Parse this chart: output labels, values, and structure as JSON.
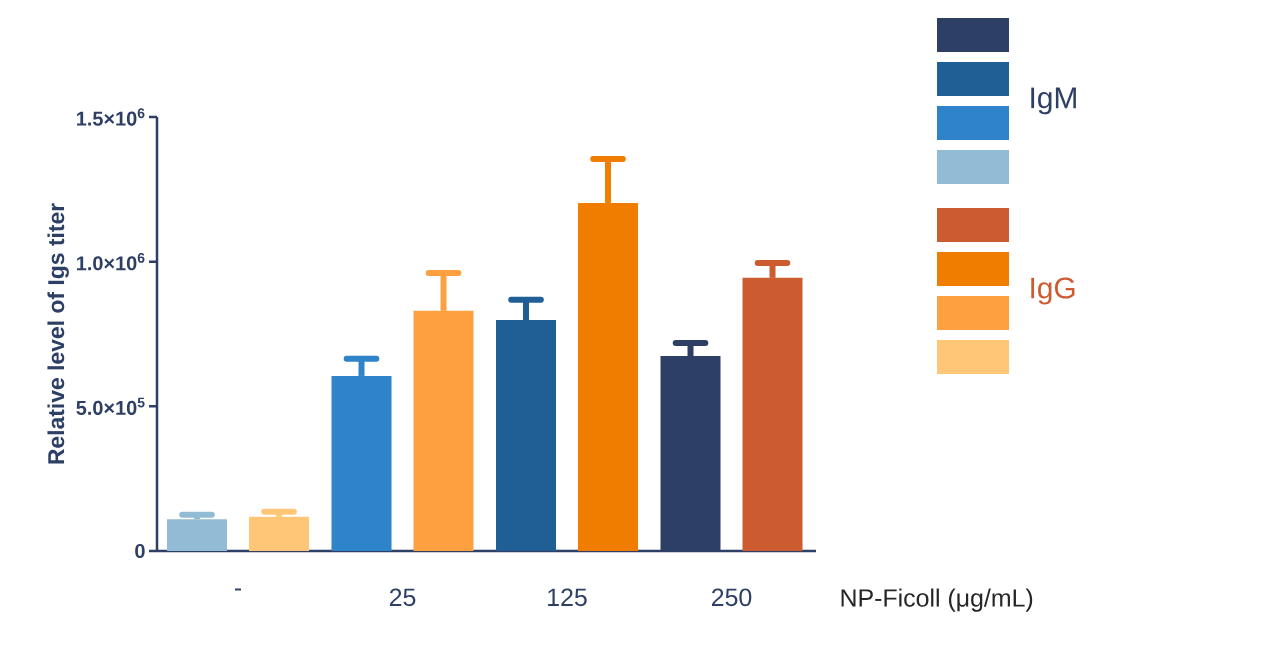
{
  "chart_data": {
    "type": "bar",
    "ylabel": "Relative level of Igs titer",
    "xlabel": "NP-Ficoll (μg/mL)",
    "categories": [
      "-",
      "25",
      "125",
      "250"
    ],
    "series": [
      {
        "name": "IgM",
        "colors": [
          "#92bcd5",
          "#2e83c9",
          "#1f5f95",
          "#2e3f66"
        ],
        "values": [
          110000,
          605000,
          798000,
          674000
        ],
        "errors": [
          [
            110000,
            125000
          ],
          [
            605000,
            664000
          ],
          [
            798000,
            868000
          ],
          [
            674000,
            719000
          ]
        ]
      },
      {
        "name": "IgG",
        "colors": [
          "#ffc677",
          "#ffa040",
          "#f07d00",
          "#cc5b30"
        ],
        "values": [
          118000,
          830000,
          1203000,
          944000
        ],
        "errors": [
          [
            118000,
            136000
          ],
          [
            830000,
            961000
          ],
          [
            1203000,
            1355000
          ],
          [
            944000,
            995000
          ]
        ]
      }
    ],
    "ylim": [
      0,
      1500000
    ],
    "yticks": [
      0,
      {
        "value": 500000,
        "label": "5.0×10$^{5}$"
      },
      {
        "value": 1000000,
        "label": "1.0×10$^{6}$"
      },
      {
        "value": 1500000,
        "label": "1.5×10$^{6}$"
      }
    ],
    "legend": "right"
  }
}
